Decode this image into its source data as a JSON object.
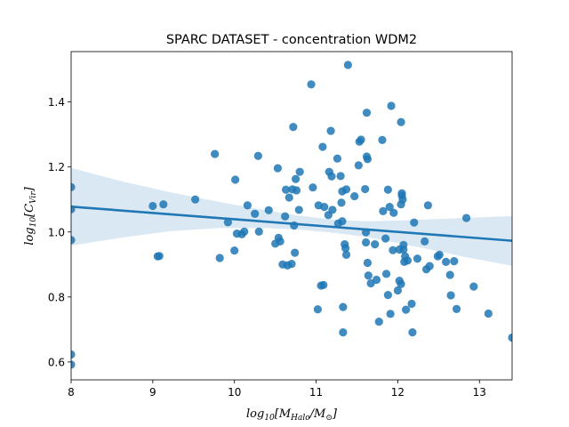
{
  "chart_data": {
    "type": "scatter",
    "title": "SPARC DATASET - concentration WDM2",
    "xlabel": {
      "base": "log",
      "sub": "10",
      "pre": "[M",
      "sub2": "Halo",
      "mid": "/M",
      "sub3": "⊙",
      "post": "]"
    },
    "ylabel": {
      "base": "log",
      "sub": "10",
      "pre": "[C",
      "sub2": "Vir",
      "post": "]"
    },
    "xlim": [
      8.0,
      13.4
    ],
    "ylim": [
      0.545,
      1.555
    ],
    "xticks": [
      8,
      9,
      10,
      11,
      12,
      13
    ],
    "yticks": [
      0.6,
      0.8,
      1.0,
      1.2,
      1.4
    ],
    "xtick_labels": [
      "8",
      "9",
      "10",
      "11",
      "12",
      "13"
    ],
    "ytick_labels": [
      "0.6",
      "0.8",
      "1.0",
      "1.2",
      "1.4"
    ],
    "regression": {
      "x": [
        8.0,
        13.4
      ],
      "y": [
        1.078,
        0.973
      ],
      "ci_upper": [
        [
          8.0,
          1.197
        ],
        [
          8.6,
          1.157
        ],
        [
          9.2,
          1.123
        ],
        [
          9.8,
          1.093
        ],
        [
          10.4,
          1.066
        ],
        [
          10.8,
          1.05
        ],
        [
          11.2,
          1.038
        ],
        [
          11.6,
          1.033
        ],
        [
          12.0,
          1.035
        ],
        [
          12.4,
          1.039
        ],
        [
          12.8,
          1.043
        ],
        [
          13.4,
          1.049
        ]
      ],
      "ci_lower": [
        [
          8.0,
          0.958
        ],
        [
          8.6,
          0.982
        ],
        [
          9.2,
          1.002
        ],
        [
          9.8,
          1.012
        ],
        [
          10.4,
          1.012
        ],
        [
          10.8,
          1.007
        ],
        [
          11.2,
          0.998
        ],
        [
          11.6,
          0.985
        ],
        [
          12.0,
          0.966
        ],
        [
          12.4,
          0.946
        ],
        [
          12.8,
          0.924
        ],
        [
          13.4,
          0.896
        ]
      ]
    },
    "colors": {
      "points": "#1f77b4",
      "line": "#1f77b4",
      "band": "#c6dbee"
    },
    "series": [
      {
        "points": [
          [
            8.0,
            1.138
          ],
          [
            8.0,
            1.07
          ],
          [
            8.0,
            0.975
          ],
          [
            8.0,
            0.623
          ],
          [
            8.0,
            0.592
          ],
          [
            9.0,
            1.08
          ],
          [
            9.06,
            0.925
          ],
          [
            9.08,
            0.926
          ],
          [
            9.13,
            1.085
          ],
          [
            9.52,
            1.1
          ],
          [
            9.76,
            1.24
          ],
          [
            9.82,
            0.92
          ],
          [
            9.92,
            1.03
          ],
          [
            10.0,
            0.943
          ],
          [
            10.01,
            1.161
          ],
          [
            10.03,
            0.995
          ],
          [
            10.09,
            0.993
          ],
          [
            10.12,
            1.001
          ],
          [
            10.16,
            1.082
          ],
          [
            10.25,
            1.056
          ],
          [
            10.29,
            1.234
          ],
          [
            10.3,
            1.001
          ],
          [
            10.42,
            1.067
          ],
          [
            10.5,
            0.964
          ],
          [
            10.53,
            1.196
          ],
          [
            10.54,
            0.982
          ],
          [
            10.56,
            0.971
          ],
          [
            10.59,
            0.9
          ],
          [
            10.62,
            1.048
          ],
          [
            10.63,
            1.13
          ],
          [
            10.65,
            0.897
          ],
          [
            10.67,
            1.106
          ],
          [
            10.7,
            0.902
          ],
          [
            10.71,
            1.131
          ],
          [
            10.72,
            1.323
          ],
          [
            10.73,
            1.02
          ],
          [
            10.74,
            0.936
          ],
          [
            10.75,
            1.163
          ],
          [
            10.76,
            1.128
          ],
          [
            10.79,
            1.068
          ],
          [
            10.8,
            1.185
          ],
          [
            10.94,
            1.454
          ],
          [
            10.96,
            1.137
          ],
          [
            11.02,
            0.762
          ],
          [
            11.03,
            1.082
          ],
          [
            11.06,
            0.835
          ],
          [
            11.08,
            1.262
          ],
          [
            11.09,
            0.837
          ],
          [
            11.1,
            1.077
          ],
          [
            11.15,
            1.052
          ],
          [
            11.16,
            1.185
          ],
          [
            11.18,
            1.311
          ],
          [
            11.19,
            1.171
          ],
          [
            11.2,
            1.068
          ],
          [
            11.26,
            1.226
          ],
          [
            11.27,
            1.026
          ],
          [
            11.3,
            1.172
          ],
          [
            11.31,
            1.09
          ],
          [
            11.32,
            1.125
          ],
          [
            11.32,
            1.033
          ],
          [
            11.33,
            0.769
          ],
          [
            11.33,
            0.691
          ],
          [
            11.35,
            0.962
          ],
          [
            11.36,
            0.95
          ],
          [
            11.37,
            0.93
          ],
          [
            11.37,
            1.131
          ],
          [
            11.39,
            1.514
          ],
          [
            11.47,
            1.11
          ],
          [
            11.52,
            1.205
          ],
          [
            11.53,
            1.278
          ],
          [
            11.55,
            1.284
          ],
          [
            11.6,
            1.132
          ],
          [
            11.61,
            0.999
          ],
          [
            11.61,
            0.968
          ],
          [
            11.62,
            1.367
          ],
          [
            11.62,
            1.232
          ],
          [
            11.63,
            1.224
          ],
          [
            11.63,
            0.905
          ],
          [
            11.64,
            0.866
          ],
          [
            11.67,
            0.842
          ],
          [
            11.72,
            0.962
          ],
          [
            11.74,
            0.853
          ],
          [
            11.77,
            0.724
          ],
          [
            11.81,
            1.283
          ],
          [
            11.82,
            1.064
          ],
          [
            11.85,
            0.98
          ],
          [
            11.86,
            0.871
          ],
          [
            11.88,
            0.806
          ],
          [
            11.88,
            1.13
          ],
          [
            11.9,
            1.077
          ],
          [
            11.91,
            0.748
          ],
          [
            11.92,
            1.388
          ],
          [
            11.94,
            0.944
          ],
          [
            11.95,
            1.059
          ],
          [
            12.0,
            0.82
          ],
          [
            12.02,
            0.946
          ],
          [
            12.02,
            0.85
          ],
          [
            12.04,
            1.085
          ],
          [
            12.04,
            0.84
          ],
          [
            12.04,
            1.338
          ],
          [
            12.05,
            1.119
          ],
          [
            12.05,
            1.112
          ],
          [
            12.06,
            1.1
          ],
          [
            12.07,
            0.96
          ],
          [
            12.07,
            0.946
          ],
          [
            12.08,
            0.908
          ],
          [
            12.09,
            0.925
          ],
          [
            12.1,
            0.761
          ],
          [
            12.12,
            0.912
          ],
          [
            12.17,
            0.779
          ],
          [
            12.18,
            0.691
          ],
          [
            12.2,
            1.029
          ],
          [
            12.24,
            0.918
          ],
          [
            12.33,
            0.971
          ],
          [
            12.35,
            0.885
          ],
          [
            12.37,
            1.082
          ],
          [
            12.39,
            0.895
          ],
          [
            12.49,
            0.925
          ],
          [
            12.51,
            0.93
          ],
          [
            12.59,
            0.908
          ],
          [
            12.64,
            0.868
          ],
          [
            12.65,
            0.805
          ],
          [
            12.69,
            0.91
          ],
          [
            12.72,
            0.763
          ],
          [
            12.84,
            1.043
          ],
          [
            12.93,
            0.832
          ],
          [
            13.11,
            0.749
          ],
          [
            13.4,
            0.675
          ]
        ]
      }
    ]
  }
}
